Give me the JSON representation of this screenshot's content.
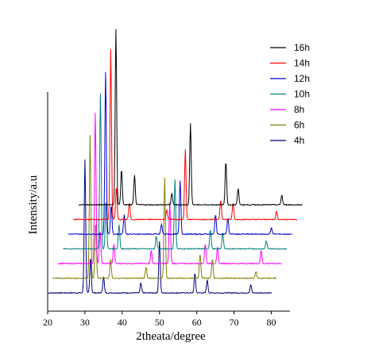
{
  "chart_data": {
    "type": "line",
    "xlabel": "2theata/degree",
    "ylabel": "Intensity/a.u",
    "xlim": [
      20,
      85
    ],
    "xticks": [
      20,
      30,
      40,
      50,
      60,
      70,
      80
    ],
    "grid": false,
    "legend_placement": "top-right",
    "layout": "waterfall",
    "series": [
      {
        "name": "4h",
        "color": "#000080",
        "x_start": 20,
        "x_end": 80,
        "peaks": [
          {
            "x": 30,
            "height": 0.82
          },
          {
            "x": 31.5,
            "height": 0.22
          },
          {
            "x": 35,
            "height": 0.1
          },
          {
            "x": 45,
            "height": 0.06
          },
          {
            "x": 50,
            "height": 0.32
          },
          {
            "x": 59.5,
            "height": 0.12
          },
          {
            "x": 62.8,
            "height": 0.08
          },
          {
            "x": 74.5,
            "height": 0.05
          }
        ]
      },
      {
        "name": "6h",
        "color": "#808000",
        "x_start": 20,
        "x_end": 80,
        "peaks": [
          {
            "x": 30,
            "height": 0.88
          },
          {
            "x": 31.5,
            "height": 0.35
          },
          {
            "x": 35.5,
            "height": 0.12
          },
          {
            "x": 45,
            "height": 0.07
          },
          {
            "x": 50,
            "height": 0.62
          },
          {
            "x": 59.5,
            "height": 0.15
          },
          {
            "x": 62.8,
            "height": 0.12
          },
          {
            "x": 74.5,
            "height": 0.04
          }
        ]
      },
      {
        "name": "8h",
        "color": "#ff00ff",
        "x_start": 20,
        "x_end": 80,
        "peaks": [
          {
            "x": 30,
            "height": 0.93
          },
          {
            "x": 31.3,
            "height": 0.2
          },
          {
            "x": 35,
            "height": 0.12
          },
          {
            "x": 45,
            "height": 0.08
          },
          {
            "x": 50,
            "height": 0.38
          },
          {
            "x": 59.5,
            "height": 0.12
          },
          {
            "x": 62.8,
            "height": 0.1
          },
          {
            "x": 74.5,
            "height": 0.08
          }
        ]
      },
      {
        "name": "10h",
        "color": "#008080",
        "x_start": 20,
        "x_end": 80,
        "peaks": [
          {
            "x": 30,
            "height": 0.96
          },
          {
            "x": 31.5,
            "height": 0.3
          },
          {
            "x": 35,
            "height": 0.15
          },
          {
            "x": 45,
            "height": 0.08
          },
          {
            "x": 50,
            "height": 0.43
          },
          {
            "x": 59.5,
            "height": 0.12
          },
          {
            "x": 62.8,
            "height": 0.1
          },
          {
            "x": 74.5,
            "height": 0.05
          }
        ]
      },
      {
        "name": "12h",
        "color": "#0000cc",
        "x_start": 20,
        "x_end": 80,
        "peaks": [
          {
            "x": 30,
            "height": 1.0
          },
          {
            "x": 31.5,
            "height": 0.18
          },
          {
            "x": 35,
            "height": 0.12
          },
          {
            "x": 45,
            "height": 0.06
          },
          {
            "x": 50,
            "height": 0.33
          },
          {
            "x": 59.5,
            "height": 0.12
          },
          {
            "x": 62.8,
            "height": 0.1
          },
          {
            "x": 74.5,
            "height": 0.04
          }
        ]
      },
      {
        "name": "14h",
        "color": "#ff0000",
        "x_start": 20,
        "x_end": 80,
        "peaks": [
          {
            "x": 30,
            "height": 1.05
          },
          {
            "x": 31.5,
            "height": 0.2
          },
          {
            "x": 35,
            "height": 0.1
          },
          {
            "x": 45,
            "height": 0.06
          },
          {
            "x": 50,
            "height": 0.43
          },
          {
            "x": 59.5,
            "height": 0.12
          },
          {
            "x": 62.8,
            "height": 0.1
          },
          {
            "x": 74.5,
            "height": 0.05
          }
        ]
      },
      {
        "name": "16h",
        "color": "#000000",
        "x_start": 20,
        "x_end": 80,
        "peaks": [
          {
            "x": 30,
            "height": 1.08
          },
          {
            "x": 31.5,
            "height": 0.22
          },
          {
            "x": 35,
            "height": 0.18
          },
          {
            "x": 45,
            "height": 0.07
          },
          {
            "x": 50,
            "height": 0.5
          },
          {
            "x": 59.5,
            "height": 0.27
          },
          {
            "x": 62.8,
            "height": 0.1
          },
          {
            "x": 74.5,
            "height": 0.06
          }
        ]
      }
    ],
    "legend_order": [
      "16h",
      "14h",
      "12h",
      "10h",
      "8h",
      "6h",
      "4h"
    ]
  }
}
